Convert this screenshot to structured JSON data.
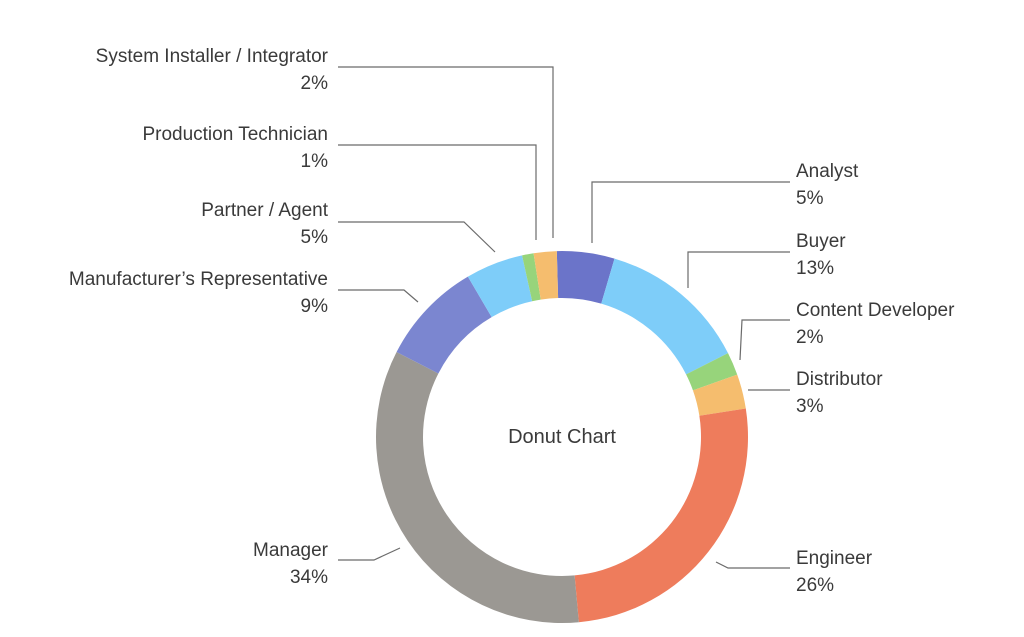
{
  "chart_data": {
    "type": "pie",
    "variant": "donut",
    "center_label": "Donut Chart",
    "slices": [
      {
        "name": "Analyst",
        "value_label": "5%",
        "value": 5,
        "color": "#6b74c9"
      },
      {
        "name": "Buyer",
        "value_label": "13%",
        "value": 13,
        "color": "#7ecdf9"
      },
      {
        "name": "Content Developer",
        "value_label": "2%",
        "value": 2,
        "color": "#97d47b"
      },
      {
        "name": "Distributor",
        "value_label": "3%",
        "value": 3,
        "color": "#f5bd6e"
      },
      {
        "name": "Engineer",
        "value_label": "26%",
        "value": 26,
        "color": "#ee7c5c"
      },
      {
        "name": "Manager",
        "value_label": "34%",
        "value": 34,
        "color": "#9b9893"
      },
      {
        "name": "Manufacturer’s Representative",
        "value_label": "9%",
        "value": 9,
        "color": "#7b86d0"
      },
      {
        "name": "Partner / Agent",
        "value_label": "5%",
        "value": 5,
        "color": "#7ecdf9"
      },
      {
        "name": "Production Technician",
        "value_label": "1%",
        "value": 1,
        "color": "#97d47b"
      },
      {
        "name": "System Installer / Integrator",
        "value_label": "2%",
        "value": 2,
        "color": "#f5bd6e"
      }
    ]
  }
}
